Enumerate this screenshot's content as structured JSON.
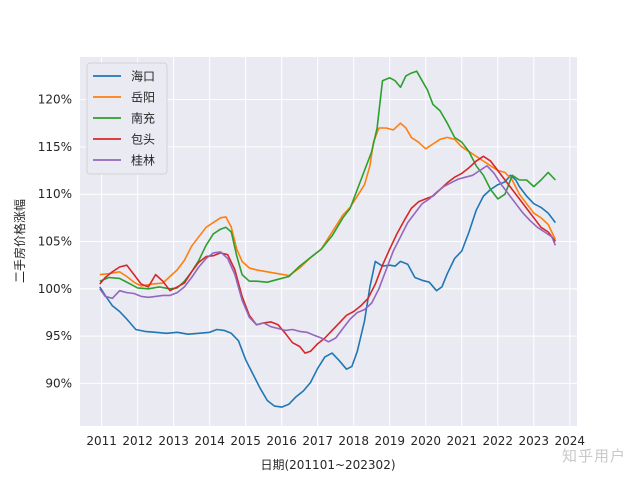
{
  "chart_data": {
    "type": "line",
    "xlabel": "日期(201101~202302)",
    "ylabel": "二手房价格涨幅",
    "xlim": [
      2010.4,
      2024.2
    ],
    "ylim": [
      85.5,
      124.5
    ],
    "xticks": [
      2011,
      2012,
      2013,
      2014,
      2015,
      2016,
      2017,
      2018,
      2019,
      2020,
      2021,
      2022,
      2023,
      2024
    ],
    "yticks": [
      90,
      95,
      100,
      105,
      110,
      115,
      120
    ],
    "ytick_suffix": "%",
    "grid": true,
    "legend_position": "top-left",
    "series": [
      {
        "name": "海口",
        "color": "#1f77b4",
        "x": [
          2010.95,
          2011.1,
          2011.3,
          2011.5,
          2011.7,
          2011.95,
          2012.2,
          2012.5,
          2012.8,
          2013.1,
          2013.4,
          2013.7,
          2014.0,
          2014.2,
          2014.4,
          2014.6,
          2014.8,
          2015.0,
          2015.2,
          2015.4,
          2015.6,
          2015.8,
          2016.0,
          2016.2,
          2016.4,
          2016.6,
          2016.8,
          2017.0,
          2017.2,
          2017.4,
          2017.6,
          2017.8,
          2017.95,
          2018.1,
          2018.3,
          2018.45,
          2018.6,
          2018.8,
          2019.0,
          2019.15,
          2019.3,
          2019.5,
          2019.7,
          2019.9,
          2020.1,
          2020.3,
          2020.45,
          2020.6,
          2020.8,
          2021.0,
          2021.2,
          2021.4,
          2021.6,
          2021.8,
          2022.0,
          2022.2,
          2022.35,
          2022.5,
          2022.6,
          2022.8,
          2023.0,
          2023.2,
          2023.4,
          2023.6
        ],
        "values": [
          100.2,
          99.3,
          98.2,
          97.6,
          96.8,
          95.7,
          95.5,
          95.4,
          95.3,
          95.4,
          95.2,
          95.3,
          95.4,
          95.7,
          95.6,
          95.3,
          94.5,
          92.5,
          91.0,
          89.5,
          88.2,
          87.6,
          87.5,
          87.8,
          88.6,
          89.2,
          90.1,
          91.6,
          92.8,
          93.2,
          92.4,
          91.5,
          91.8,
          93.4,
          96.6,
          100.2,
          102.9,
          102.4,
          102.5,
          102.4,
          102.9,
          102.6,
          101.2,
          100.9,
          100.7,
          99.8,
          100.2,
          101.6,
          103.2,
          104.0,
          106.0,
          108.3,
          109.8,
          110.5,
          111.0,
          111.3,
          112.0,
          111.5,
          110.8,
          109.8,
          109.0,
          108.6,
          108.0,
          107.0
        ]
      },
      {
        "name": "岳阳",
        "color": "#ff7f0e",
        "x": [
          2010.95,
          2011.2,
          2011.5,
          2011.7,
          2011.9,
          2012.1,
          2012.4,
          2012.7,
          2012.9,
          2013.1,
          2013.3,
          2013.5,
          2013.7,
          2013.9,
          2014.1,
          2014.3,
          2014.45,
          2014.6,
          2014.75,
          2014.9,
          2015.1,
          2015.3,
          2015.6,
          2015.9,
          2016.2,
          2016.5,
          2016.8,
          2017.1,
          2017.4,
          2017.7,
          2017.9,
          2018.1,
          2018.3,
          2018.45,
          2018.55,
          2018.7,
          2018.9,
          2019.1,
          2019.3,
          2019.45,
          2019.6,
          2019.8,
          2020.0,
          2020.2,
          2020.4,
          2020.6,
          2020.8,
          2021.0,
          2021.2,
          2021.4,
          2021.6,
          2021.8,
          2022.0,
          2022.2,
          2022.4,
          2022.6,
          2022.8,
          2023.0,
          2023.2,
          2023.4,
          2023.6
        ],
        "values": [
          101.5,
          101.6,
          101.8,
          101.3,
          100.7,
          100.3,
          100.5,
          100.6,
          101.3,
          102.0,
          103.0,
          104.5,
          105.5,
          106.5,
          107.0,
          107.5,
          107.6,
          106.5,
          104.2,
          102.9,
          102.2,
          102.0,
          101.8,
          101.6,
          101.4,
          102.2,
          103.3,
          104.2,
          106.0,
          107.8,
          108.6,
          109.8,
          111.0,
          113.0,
          115.5,
          117.0,
          117.0,
          116.8,
          117.5,
          117.0,
          116.0,
          115.5,
          114.8,
          115.3,
          115.8,
          116.0,
          115.8,
          115.0,
          114.5,
          114.0,
          113.5,
          113.0,
          112.5,
          112.3,
          111.5,
          110.0,
          109.0,
          108.0,
          107.5,
          106.8,
          105.2
        ]
      },
      {
        "name": "南充",
        "color": "#2ca02c",
        "x": [
          2010.95,
          2011.2,
          2011.5,
          2011.8,
          2012.0,
          2012.3,
          2012.6,
          2012.9,
          2013.1,
          2013.3,
          2013.5,
          2013.7,
          2013.9,
          2014.1,
          2014.3,
          2014.45,
          2014.6,
          2014.75,
          2014.9,
          2015.1,
          2015.3,
          2015.6,
          2015.9,
          2016.2,
          2016.5,
          2016.8,
          2017.1,
          2017.4,
          2017.7,
          2017.9,
          2018.1,
          2018.3,
          2018.5,
          2018.65,
          2018.8,
          2019.0,
          2019.15,
          2019.3,
          2019.45,
          2019.6,
          2019.75,
          2019.9,
          2020.05,
          2020.2,
          2020.4,
          2020.6,
          2020.8,
          2021.0,
          2021.2,
          2021.4,
          2021.6,
          2021.8,
          2022.0,
          2022.2,
          2022.4,
          2022.6,
          2022.8,
          2023.0,
          2023.2,
          2023.4,
          2023.6
        ],
        "values": [
          100.8,
          101.2,
          101.1,
          100.5,
          100.1,
          100.0,
          100.2,
          100.0,
          100.1,
          100.8,
          101.8,
          103.0,
          104.6,
          105.8,
          106.3,
          106.5,
          106.0,
          103.5,
          101.5,
          100.8,
          100.8,
          100.7,
          101.0,
          101.3,
          102.4,
          103.3,
          104.2,
          105.6,
          107.5,
          108.5,
          110.5,
          112.5,
          114.5,
          117.0,
          122.0,
          122.3,
          122.0,
          121.3,
          122.5,
          122.8,
          123.0,
          122.0,
          121.0,
          119.5,
          118.8,
          117.5,
          116.0,
          115.5,
          114.5,
          113.0,
          112.0,
          110.5,
          109.5,
          110.0,
          112.0,
          111.5,
          111.5,
          110.8,
          111.5,
          112.3,
          111.5
        ]
      },
      {
        "name": "包头",
        "color": "#d62728",
        "x": [
          2010.95,
          2011.1,
          2011.3,
          2011.5,
          2011.7,
          2011.9,
          2012.1,
          2012.3,
          2012.5,
          2012.7,
          2012.9,
          2013.1,
          2013.3,
          2013.5,
          2013.7,
          2013.9,
          2014.1,
          2014.3,
          2014.5,
          2014.7,
          2014.9,
          2015.1,
          2015.3,
          2015.5,
          2015.7,
          2015.9,
          2016.1,
          2016.3,
          2016.5,
          2016.65,
          2016.8,
          2017.0,
          2017.2,
          2017.4,
          2017.6,
          2017.8,
          2018.0,
          2018.2,
          2018.4,
          2018.6,
          2018.8,
          2019.0,
          2019.2,
          2019.4,
          2019.6,
          2019.8,
          2020.0,
          2020.2,
          2020.4,
          2020.6,
          2020.8,
          2021.0,
          2021.2,
          2021.4,
          2021.6,
          2021.8,
          2022.0,
          2022.2,
          2022.4,
          2022.6,
          2022.8,
          2023.0,
          2023.2,
          2023.4,
          2023.6
        ],
        "values": [
          100.5,
          101.2,
          101.8,
          102.3,
          102.5,
          101.5,
          100.5,
          100.2,
          101.5,
          100.8,
          99.8,
          100.2,
          100.6,
          101.8,
          102.8,
          103.4,
          103.5,
          103.8,
          103.6,
          102.0,
          99.2,
          97.2,
          96.2,
          96.4,
          96.5,
          96.2,
          95.3,
          94.3,
          93.9,
          93.2,
          93.4,
          94.2,
          94.8,
          95.6,
          96.4,
          97.2,
          97.6,
          98.2,
          99.0,
          100.5,
          102.5,
          104.2,
          105.8,
          107.2,
          108.5,
          109.2,
          109.5,
          109.8,
          110.5,
          111.2,
          111.8,
          112.2,
          112.8,
          113.5,
          114.0,
          113.5,
          112.5,
          111.5,
          110.5,
          109.5,
          108.5,
          107.5,
          106.5,
          106.0,
          105.0
        ]
      },
      {
        "name": "桂林",
        "color": "#9467bd",
        "x": [
          2010.95,
          2011.1,
          2011.3,
          2011.5,
          2011.7,
          2011.9,
          2012.1,
          2012.3,
          2012.5,
          2012.7,
          2012.9,
          2013.1,
          2013.3,
          2013.5,
          2013.7,
          2013.9,
          2014.1,
          2014.3,
          2014.5,
          2014.7,
          2014.9,
          2015.1,
          2015.3,
          2015.5,
          2015.7,
          2015.9,
          2016.1,
          2016.3,
          2016.5,
          2016.7,
          2016.9,
          2017.1,
          2017.3,
          2017.5,
          2017.7,
          2017.9,
          2018.1,
          2018.3,
          2018.5,
          2018.7,
          2018.9,
          2019.1,
          2019.3,
          2019.5,
          2019.7,
          2019.9,
          2020.1,
          2020.3,
          2020.5,
          2020.7,
          2020.9,
          2021.1,
          2021.3,
          2021.5,
          2021.7,
          2021.9,
          2022.1,
          2022.3,
          2022.5,
          2022.7,
          2022.9,
          2023.1,
          2023.3,
          2023.5,
          2023.6
        ],
        "values": [
          100.0,
          99.2,
          99.0,
          99.8,
          99.6,
          99.5,
          99.2,
          99.1,
          99.2,
          99.3,
          99.3,
          99.6,
          100.2,
          101.2,
          102.3,
          103.2,
          103.8,
          103.9,
          103.2,
          101.5,
          98.8,
          97.0,
          96.2,
          96.4,
          96.0,
          95.8,
          95.6,
          95.7,
          95.5,
          95.4,
          95.1,
          94.8,
          94.4,
          94.8,
          95.8,
          96.8,
          97.5,
          97.8,
          98.5,
          100.0,
          102.0,
          104.0,
          105.5,
          107.0,
          108.0,
          109.0,
          109.5,
          110.2,
          110.8,
          111.2,
          111.6,
          111.8,
          112.0,
          112.5,
          113.0,
          112.2,
          111.0,
          110.0,
          109.0,
          108.0,
          107.2,
          106.5,
          106.0,
          105.5,
          104.6
        ]
      }
    ]
  },
  "watermark": "知乎用户"
}
